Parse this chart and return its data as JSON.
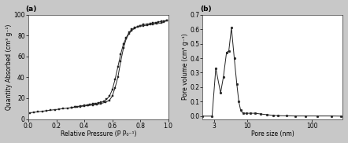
{
  "fig_width": 4.42,
  "fig_height": 1.82,
  "dpi": 100,
  "panel_a": {
    "label": "(a)",
    "xlabel": "Relative Pressure (P P₀⁻¹)",
    "ylabel": "Quantity Absorbed (cm³ g⁻¹)",
    "xlim": [
      0.0,
      1.0
    ],
    "ylim": [
      0,
      100
    ],
    "yticks": [
      0,
      20,
      40,
      60,
      80,
      100
    ],
    "xticks": [
      0.0,
      0.2,
      0.4,
      0.6,
      0.8,
      1.0
    ],
    "adsorption_x": [
      0.01,
      0.04,
      0.07,
      0.1,
      0.13,
      0.16,
      0.19,
      0.22,
      0.25,
      0.28,
      0.31,
      0.34,
      0.37,
      0.4,
      0.43,
      0.46,
      0.49,
      0.52,
      0.55,
      0.58,
      0.6,
      0.62,
      0.64,
      0.66,
      0.68,
      0.7,
      0.72,
      0.74,
      0.76,
      0.78,
      0.8,
      0.82,
      0.85,
      0.87,
      0.89,
      0.91,
      0.93,
      0.95,
      0.97,
      0.99
    ],
    "adsorption_y": [
      6,
      6.5,
      7,
      7.5,
      8,
      8.5,
      9,
      9.5,
      10,
      10.5,
      11,
      11.5,
      12,
      12.5,
      13,
      13.5,
      14,
      15,
      16,
      18,
      22,
      30,
      40,
      55,
      68,
      77,
      82,
      85,
      87,
      88.5,
      89.5,
      90.5,
      91,
      91.5,
      92,
      92.5,
      93,
      93.5,
      94,
      94.5
    ],
    "desorption_x": [
      0.99,
      0.97,
      0.95,
      0.92,
      0.89,
      0.87,
      0.85,
      0.82,
      0.8,
      0.78,
      0.76,
      0.74,
      0.72,
      0.7,
      0.68,
      0.66,
      0.64,
      0.62,
      0.6,
      0.58,
      0.56,
      0.54,
      0.52,
      0.5,
      0.48,
      0.46,
      0.44,
      0.42,
      0.4,
      0.37,
      0.35,
      0.33,
      0.31
    ],
    "desorption_y": [
      94.5,
      93,
      92,
      91.5,
      91,
      90.5,
      90,
      89.5,
      89,
      88.5,
      87.5,
      86,
      83,
      78,
      72,
      62,
      50,
      38,
      28,
      22,
      19,
      17,
      16,
      15.5,
      15,
      14.5,
      14,
      13.5,
      13,
      12.5,
      12,
      11.5,
      11
    ],
    "marker": "s",
    "markersize": 2.0,
    "linewidth": 0.7,
    "color": "#222222"
  },
  "panel_b": {
    "label": "(b)",
    "xlabel": "Pore size (nm)",
    "ylabel": "Pore volume (cm³ g⁻¹)",
    "xlim_log": [
      2,
      300
    ],
    "ylim": [
      -0.02,
      0.7
    ],
    "yticks": [
      0.0,
      0.1,
      0.2,
      0.3,
      0.4,
      0.5,
      0.6,
      0.7
    ],
    "pore_x": [
      2.0,
      2.8,
      3.2,
      3.8,
      4.2,
      4.7,
      5.1,
      5.6,
      6.2,
      6.8,
      7.3,
      7.8,
      8.5,
      9.5,
      11.0,
      13.0,
      16.0,
      20.0,
      25.0,
      30.0,
      40.0,
      55.0,
      80.0,
      120.0,
      200.0,
      280.0
    ],
    "pore_y": [
      0.0,
      0.0,
      0.33,
      0.16,
      0.27,
      0.44,
      0.45,
      0.61,
      0.4,
      0.22,
      0.1,
      0.04,
      0.02,
      0.02,
      0.02,
      0.02,
      0.015,
      0.01,
      0.005,
      0.003,
      0.002,
      0.001,
      0.001,
      0.001,
      0.001,
      0.0
    ],
    "marker": "o",
    "markersize": 2.0,
    "linewidth": 0.7,
    "color": "#222222"
  },
  "background_color": "#c8c8c8",
  "plot_bg": "#ffffff",
  "label_fontsize": 6.5,
  "tick_fontsize": 5.5,
  "axis_label_fontsize": 5.5
}
